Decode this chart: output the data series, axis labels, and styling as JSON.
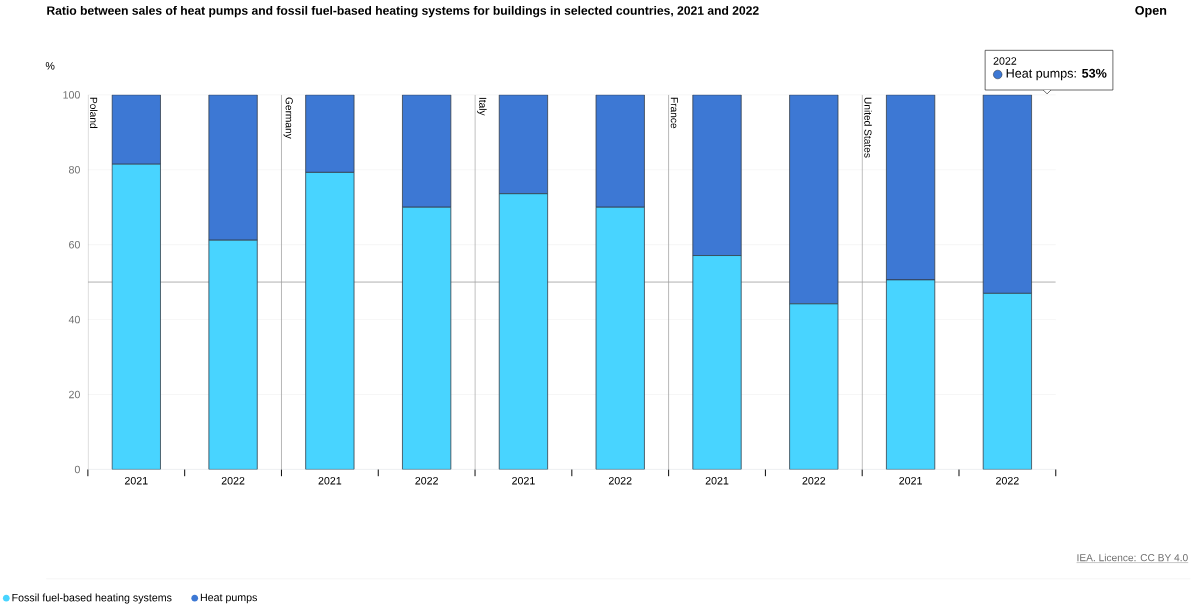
{
  "chart_data": {
    "type": "bar",
    "stacked": true,
    "title": "Ratio between sales of heat pumps and fossil fuel-based heating systems for buildings in selected countries, 2021 and 2022",
    "ylabel": "%",
    "categories": [
      "2021",
      "2022",
      "2021",
      "2022",
      "2021",
      "2022",
      "2021",
      "2022",
      "2021",
      "2022"
    ],
    "series": [
      {
        "name": "Fossil fuel-based heating systems",
        "color": "#48d4ff",
        "values": [
          81.5,
          61.2,
          79.3,
          70,
          73.6,
          70,
          57.1,
          44.2,
          50.6,
          47
        ]
      },
      {
        "name": "Heat pumps",
        "color": "#3d78d4",
        "values": [
          18.5,
          38.8,
          20.7,
          30,
          26.4,
          30,
          42.9,
          55.8,
          49.4,
          53
        ]
      }
    ],
    "ylim": [
      0,
      100
    ],
    "yticks": [
      0,
      20,
      40,
      60,
      80,
      100
    ],
    "grid": "y",
    "legend": "bottom",
    "ref_lines": [
      {
        "axis": "y",
        "value": 50,
        "color": "#a0a0a0"
      }
    ],
    "annotations": [
      "Open",
      "2022",
      "Heat pumps: **53%**",
      "IEA. Licence: CC BY 4.0",
      "Poland",
      "Germany",
      "Italy",
      "France",
      "United States"
    ]
  }
}
